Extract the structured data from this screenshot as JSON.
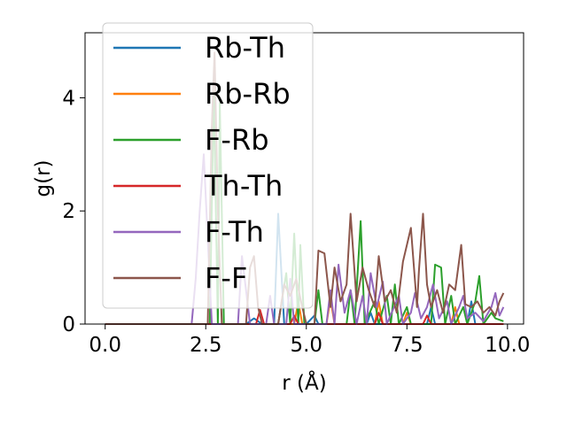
{
  "chart_data": {
    "type": "line",
    "xlabel": "r (Å)",
    "ylabel": "g(r)",
    "xlim": [
      -0.5,
      10.4
    ],
    "ylim": [
      0,
      5.15
    ],
    "xticks": [
      0.0,
      2.5,
      5.0,
      7.5,
      10.0
    ],
    "xtick_labels": [
      "0.0",
      "2.5",
      "5.0",
      "7.5",
      "10.0"
    ],
    "yticks": [
      0,
      2,
      4
    ],
    "ytick_labels": [
      "0",
      "2",
      "4"
    ],
    "grid": false,
    "legend_position": "top-left",
    "series": [
      {
        "name": "Rb-Th",
        "color": "#1f77b4",
        "points": [
          [
            0,
            0
          ],
          [
            3.5,
            0
          ],
          [
            3.7,
            0.1
          ],
          [
            3.9,
            0
          ],
          [
            4.2,
            0
          ],
          [
            4.3,
            1.95
          ],
          [
            4.45,
            0
          ],
          [
            5.0,
            0
          ],
          [
            5.2,
            0.15
          ],
          [
            5.3,
            0
          ],
          [
            6.5,
            0
          ],
          [
            6.6,
            0.2
          ],
          [
            6.7,
            0
          ],
          [
            8.0,
            0
          ],
          [
            8.1,
            0.3
          ],
          [
            8.2,
            0
          ],
          [
            9.0,
            0
          ],
          [
            9.1,
            0.4
          ],
          [
            9.2,
            0
          ],
          [
            9.9,
            0
          ]
        ]
      },
      {
        "name": "Rb-Rb",
        "color": "#ff7f0e",
        "points": [
          [
            0,
            0
          ],
          [
            4.7,
            0
          ],
          [
            4.8,
            0.4
          ],
          [
            4.9,
            0
          ],
          [
            5.5,
            0
          ],
          [
            5.6,
            0.45
          ],
          [
            5.7,
            0
          ],
          [
            6.7,
            0
          ],
          [
            6.8,
            0.4
          ],
          [
            6.9,
            0
          ],
          [
            7.4,
            0
          ],
          [
            7.5,
            0.2
          ],
          [
            7.6,
            0
          ],
          [
            8.6,
            0
          ],
          [
            8.7,
            0.3
          ],
          [
            8.8,
            0
          ],
          [
            9.9,
            0
          ]
        ]
      },
      {
        "name": "F-Rb",
        "color": "#2ca02c",
        "points": [
          [
            0,
            0
          ],
          [
            2.6,
            0
          ],
          [
            2.7,
            4.1
          ],
          [
            2.8,
            0
          ],
          [
            2.85,
            3.9
          ],
          [
            2.95,
            0
          ],
          [
            4.3,
            0
          ],
          [
            4.5,
            0.9
          ],
          [
            4.6,
            0
          ],
          [
            4.7,
            1.6
          ],
          [
            4.8,
            0
          ],
          [
            4.85,
            1.4
          ],
          [
            4.95,
            0
          ],
          [
            5.2,
            0
          ],
          [
            5.3,
            0.6
          ],
          [
            5.4,
            0
          ],
          [
            6.0,
            0
          ],
          [
            6.1,
            0.6
          ],
          [
            6.2,
            0
          ],
          [
            6.35,
            1.82
          ],
          [
            6.45,
            0
          ],
          [
            6.7,
            0.4
          ],
          [
            6.8,
            0
          ],
          [
            7.0,
            0.5
          ],
          [
            7.1,
            0
          ],
          [
            7.2,
            0.7
          ],
          [
            7.3,
            0
          ],
          [
            7.5,
            0.3
          ],
          [
            7.6,
            0
          ],
          [
            8.1,
            0
          ],
          [
            8.2,
            1.05
          ],
          [
            8.35,
            1.0
          ],
          [
            8.45,
            0
          ],
          [
            8.6,
            0.5
          ],
          [
            8.7,
            0
          ],
          [
            8.9,
            0.3
          ],
          [
            9.0,
            0
          ],
          [
            9.2,
            0.4
          ],
          [
            9.3,
            0.85
          ],
          [
            9.4,
            0
          ],
          [
            9.6,
            0.2
          ],
          [
            9.7,
            0.1
          ],
          [
            9.9,
            0.05
          ]
        ]
      },
      {
        "name": "Th-Th",
        "color": "#d62728",
        "points": [
          [
            0,
            0
          ],
          [
            3.75,
            0
          ],
          [
            3.85,
            0.25
          ],
          [
            3.95,
            0
          ],
          [
            4.6,
            0
          ],
          [
            4.7,
            0.15
          ],
          [
            4.8,
            0
          ],
          [
            6.7,
            0
          ],
          [
            6.8,
            0.2
          ],
          [
            6.9,
            0
          ],
          [
            7.9,
            0
          ],
          [
            8.0,
            0.15
          ],
          [
            8.1,
            0
          ],
          [
            9.9,
            0
          ]
        ]
      },
      {
        "name": "F-Th",
        "color": "#9467bd",
        "points": [
          [
            0,
            0
          ],
          [
            2.15,
            0
          ],
          [
            2.25,
            0.8
          ],
          [
            2.35,
            2.0
          ],
          [
            2.45,
            3.0
          ],
          [
            2.55,
            1.5
          ],
          [
            2.65,
            0
          ],
          [
            3.3,
            0
          ],
          [
            3.4,
            1.2
          ],
          [
            3.5,
            0.6
          ],
          [
            3.6,
            0
          ],
          [
            4.0,
            0
          ],
          [
            4.1,
            0.5
          ],
          [
            4.2,
            0
          ],
          [
            4.5,
            0
          ],
          [
            4.6,
            0.8
          ],
          [
            4.7,
            0
          ],
          [
            5.5,
            0
          ],
          [
            5.6,
            0.6
          ],
          [
            5.7,
            0
          ],
          [
            5.8,
            1.05
          ],
          [
            5.95,
            0.2
          ],
          [
            6.1,
            0.6
          ],
          [
            6.25,
            0
          ],
          [
            6.4,
            0.5
          ],
          [
            6.5,
            0
          ],
          [
            6.6,
            0.9
          ],
          [
            6.75,
            0.3
          ],
          [
            6.9,
            0.75
          ],
          [
            7.0,
            0
          ],
          [
            7.3,
            0.5
          ],
          [
            7.4,
            0
          ],
          [
            7.6,
            0.2
          ],
          [
            7.7,
            0.55
          ],
          [
            7.85,
            0.1
          ],
          [
            8.0,
            0.3
          ],
          [
            8.15,
            0.7
          ],
          [
            8.3,
            0.1
          ],
          [
            8.5,
            0.4
          ],
          [
            8.6,
            0
          ],
          [
            8.8,
            0.3
          ],
          [
            8.9,
            0.5
          ],
          [
            9.0,
            0.1
          ],
          [
            9.2,
            0.2
          ],
          [
            9.4,
            0.05
          ],
          [
            9.6,
            0.3
          ],
          [
            9.7,
            0.55
          ],
          [
            9.8,
            0.15
          ],
          [
            9.9,
            0.3
          ]
        ]
      },
      {
        "name": "F-F",
        "color": "#8c564b",
        "points": [
          [
            0,
            0
          ],
          [
            2.55,
            0
          ],
          [
            2.65,
            3.5
          ],
          [
            2.72,
            4.8
          ],
          [
            2.8,
            2.0
          ],
          [
            2.9,
            0
          ],
          [
            3.5,
            0
          ],
          [
            3.6,
            1.0
          ],
          [
            3.7,
            1.2
          ],
          [
            3.8,
            0.3
          ],
          [
            3.9,
            0
          ],
          [
            4.3,
            0
          ],
          [
            4.45,
            0.7
          ],
          [
            4.6,
            0.5
          ],
          [
            4.75,
            0.8
          ],
          [
            4.9,
            0.3
          ],
          [
            5.0,
            0
          ],
          [
            5.2,
            0
          ],
          [
            5.3,
            1.3
          ],
          [
            5.45,
            1.25
          ],
          [
            5.6,
            0.3
          ],
          [
            5.7,
            1.0
          ],
          [
            5.85,
            0.4
          ],
          [
            6.0,
            0.7
          ],
          [
            6.1,
            1.95
          ],
          [
            6.25,
            0.4
          ],
          [
            6.4,
            1.0
          ],
          [
            6.55,
            0.6
          ],
          [
            6.7,
            0.3
          ],
          [
            6.8,
            1.2
          ],
          [
            6.95,
            0.4
          ],
          [
            7.1,
            0.6
          ],
          [
            7.25,
            0.2
          ],
          [
            7.4,
            1.1
          ],
          [
            7.5,
            1.4
          ],
          [
            7.6,
            1.7
          ],
          [
            7.75,
            0.3
          ],
          [
            7.8,
            0.95
          ],
          [
            7.9,
            1.95
          ],
          [
            8.0,
            0.7
          ],
          [
            8.1,
            0.3
          ],
          [
            8.25,
            0.6
          ],
          [
            8.4,
            0.2
          ],
          [
            8.55,
            0.7
          ],
          [
            8.7,
            0.6
          ],
          [
            8.85,
            1.4
          ],
          [
            8.95,
            0.35
          ],
          [
            9.1,
            0.3
          ],
          [
            9.25,
            0.4
          ],
          [
            9.4,
            0.2
          ],
          [
            9.55,
            0.3
          ],
          [
            9.7,
            0.15
          ],
          [
            9.8,
            0.4
          ],
          [
            9.9,
            0.55
          ]
        ]
      }
    ]
  }
}
